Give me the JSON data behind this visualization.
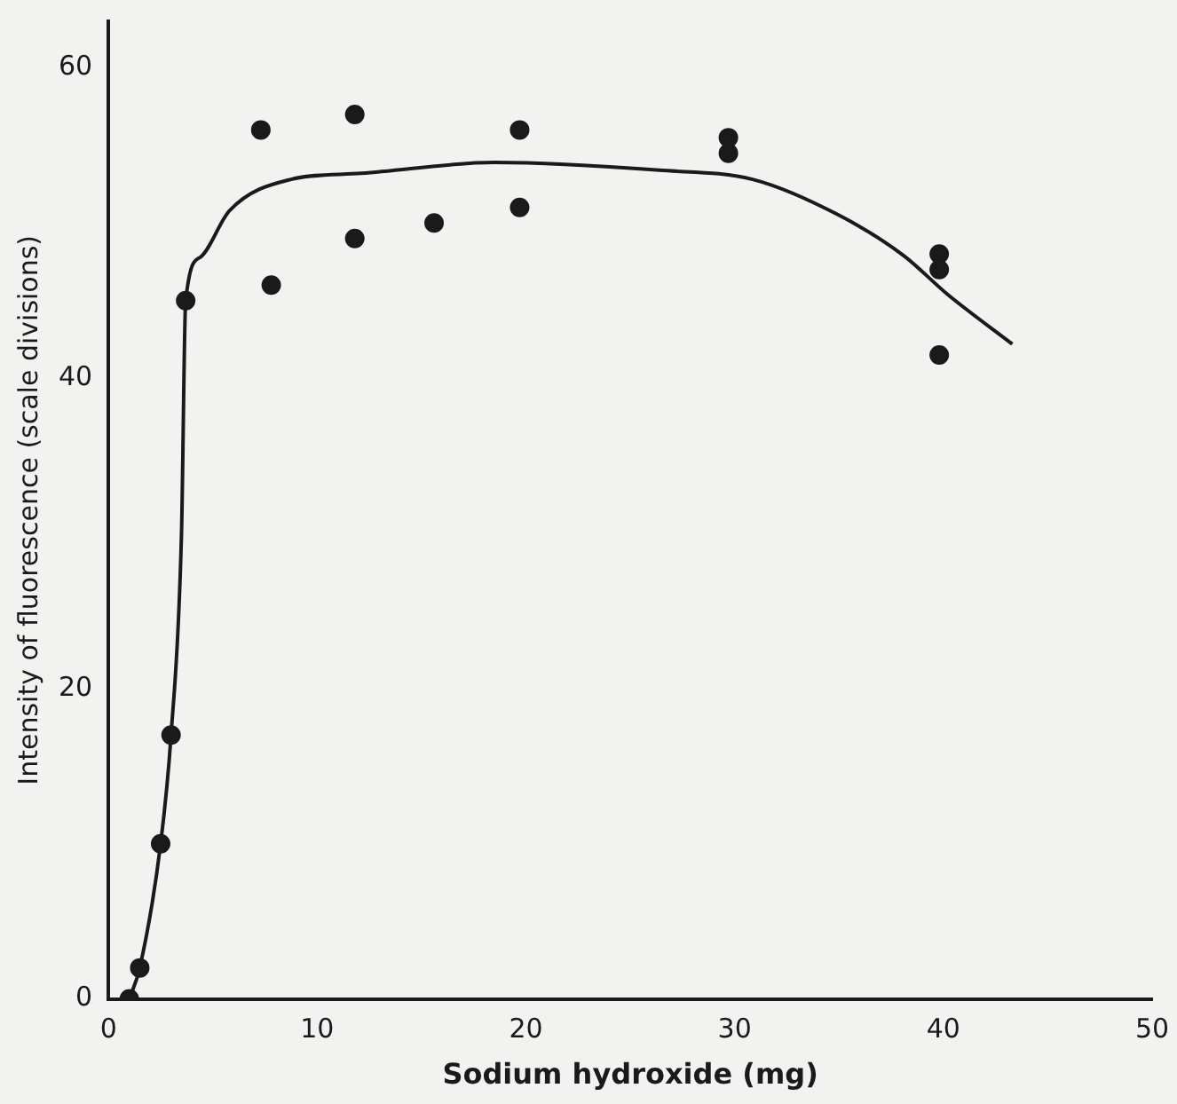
{
  "chart_data": {
    "type": "scatter",
    "xlabel": "Sodium hydroxide (mg)",
    "ylabel": "Intensity of fluorescence (scale divisions)",
    "xlim": [
      0,
      50
    ],
    "xticks": [
      0,
      10,
      20,
      30,
      40,
      50
    ],
    "ylim": [
      0,
      63
    ],
    "yticks": [
      0,
      20,
      40,
      60
    ],
    "grid": false,
    "legend": false,
    "marker": "circle",
    "series": [
      {
        "color": "#1a1a1a",
        "x": [
          1,
          1.5,
          2.5,
          3,
          3.7,
          7.3,
          7.8,
          11.8,
          11.8,
          15.6,
          19.7,
          19.7,
          29.7,
          29.7,
          39.8,
          39.8,
          39.8
        ],
        "values": [
          0,
          2,
          10,
          17,
          45,
          56,
          46,
          57,
          49,
          50,
          56,
          51,
          55.5,
          54.5,
          48,
          47,
          41.5
        ]
      },
      {
        "type": "line",
        "color": "#1a1a1a",
        "marker": "none",
        "x": [
          1,
          1.5,
          2.5,
          3,
          3.5,
          3.7,
          4.4,
          5.8,
          8.7,
          12.1,
          18.5,
          26.4,
          30.9,
          35,
          38.1,
          40.2,
          43.3
        ],
        "values": [
          0,
          2,
          10,
          17,
          30,
          45,
          47.8,
          50.8,
          52.8,
          53.2,
          53.9,
          53.4,
          52.8,
          50.5,
          47.9,
          45.4,
          42.2
        ]
      }
    ]
  }
}
